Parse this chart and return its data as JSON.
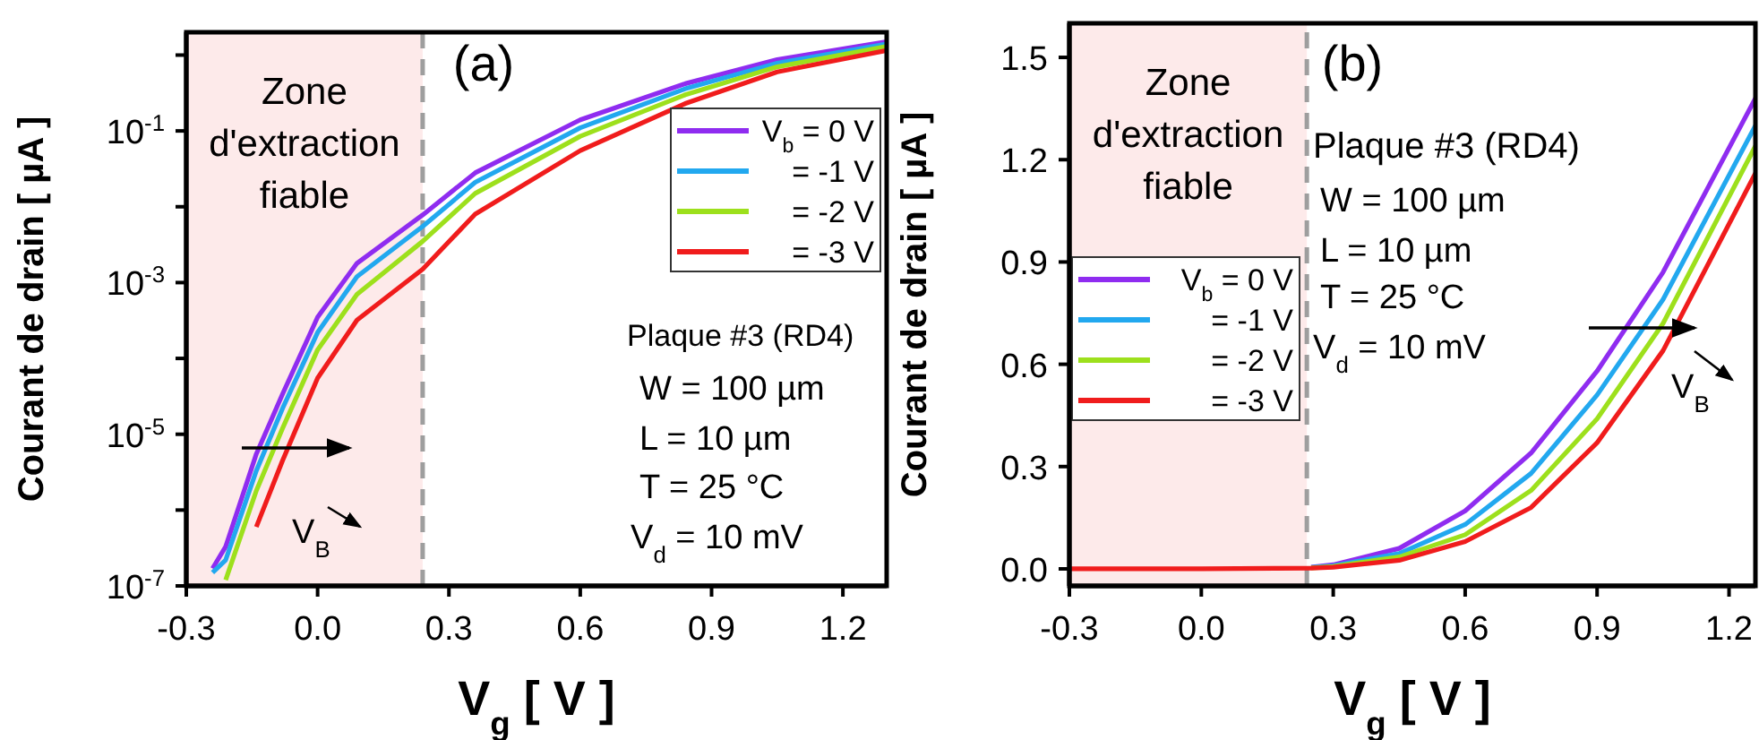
{
  "chart_data": [
    {
      "type": "line",
      "xlabel": "V$_{g}$ [ V ]",
      "ylabel": "Courant de drain [ µA ]",
      "log": "y",
      "x": [
        -0.24,
        -0.21,
        -0.14,
        -0.08,
        0.0,
        0.09,
        0.24,
        0.36,
        0.6,
        0.84,
        1.05,
        1.3
      ],
      "series": [
        {
          "name": "V$_{b}$ = 0 V",
          "color": "#8f2cf0",
          "values": [
            1.7e-07,
            3.3e-07,
            5.5e-06,
            3.4e-05,
            0.00035,
            0.0018,
            0.0078,
            0.028,
            0.14,
            0.42,
            0.87,
            1.5
          ]
        },
        {
          "name": "= -1 V",
          "color": "#22a8ef",
          "values": [
            1.5e-07,
            2.2e-07,
            3.3e-06,
            2.2e-05,
            0.00022,
            0.0012,
            0.0055,
            0.021,
            0.11,
            0.36,
            0.78,
            1.4
          ]
        },
        {
          "name": "= -2 V",
          "color": "#9de01c",
          "values": [
            null,
            1.2e-07,
            1.8e-06,
            1.2e-05,
            0.00013,
            0.0007,
            0.0035,
            0.015,
            0.085,
            0.3,
            0.7,
            1.3
          ]
        },
        {
          "name": "= -3 V",
          "color": "#f01c1c",
          "values": [
            null,
            null,
            6e-07,
            4.5e-06,
            5.5e-05,
            0.00032,
            0.0015,
            0.008,
            0.055,
            0.23,
            0.6,
            1.15
          ]
        }
      ],
      "xlim": [
        -0.3,
        1.3
      ],
      "xticks": [
        -0.3,
        {
          "value": 0,
          "label": "0.0"
        },
        0.3,
        0.6,
        0.9,
        1.2
      ],
      "ylim": [
        1e-07,
        2
      ],
      "yticks": [
        {
          "value": 1e-07,
          "label": "10$^{-7}$"
        },
        {
          "value": 1e-06,
          "label": null
        },
        {
          "value": 1e-05,
          "label": "10$^{-5}$"
        },
        {
          "value": 0.0001,
          "label": null
        },
        {
          "value": 0.001,
          "label": "10$^{-3}$"
        },
        {
          "value": 0.01,
          "label": null
        },
        {
          "value": 0.1,
          "label": "10$^{-1}$"
        },
        {
          "value": 1,
          "label": null
        }
      ],
      "bands": [
        {
          "axis": "x",
          "from": -0.3,
          "to": 0.24,
          "label": "Zone d'extraction fiable",
          "color": "#fdeaea"
        }
      ],
      "ref_lines": [
        {
          "axis": "x",
          "value": 0.24,
          "color": "#9e9e9e",
          "line_style": "dashed"
        }
      ],
      "legend": "top right",
      "annotations": [
        "(a)",
        "Plaque #3 (RD4)",
        "W = 100 µm",
        "L = 10 µm",
        "T = 25 °C",
        "V$_{d}$ = 10 mV",
        "V$_{B}$"
      ]
    },
    {
      "type": "line",
      "xlabel": "V$_{g}$ [ V ]",
      "ylabel": "Courant de drain [ µA ]",
      "x": [
        -0.3,
        0.0,
        0.25,
        0.3,
        0.45,
        0.6,
        0.75,
        0.9,
        1.05,
        1.26
      ],
      "series": [
        {
          "name": "V$_{b}$ = 0 V",
          "color": "#8f2cf0",
          "values": [
            null,
            null,
            0.005,
            0.012,
            0.06,
            0.17,
            0.34,
            0.58,
            0.87,
            1.38
          ]
        },
        {
          "name": "= -1 V",
          "color": "#22a8ef",
          "values": [
            null,
            null,
            0.004,
            0.009,
            0.045,
            0.13,
            0.28,
            0.51,
            0.79,
            1.3
          ]
        },
        {
          "name": "= -2 V",
          "color": "#9de01c",
          "values": [
            null,
            null,
            0.003,
            0.007,
            0.035,
            0.1,
            0.23,
            0.44,
            0.72,
            1.24
          ]
        },
        {
          "name": "= -3 V",
          "color": "#f01c1c",
          "values": [
            0,
            0,
            0.002,
            0.005,
            0.025,
            0.08,
            0.18,
            0.37,
            0.64,
            1.16
          ]
        }
      ],
      "xlim": [
        -0.3,
        1.26
      ],
      "xticks": [
        -0.3,
        {
          "value": 0,
          "label": "0.0"
        },
        0.3,
        0.6,
        0.9,
        1.2
      ],
      "ylim": [
        -0.05,
        1.6
      ],
      "yticks": [
        {
          "value": 0,
          "label": "0.0"
        },
        0.3,
        0.6,
        0.9,
        1.2,
        1.5
      ],
      "bands": [
        {
          "axis": "x",
          "from": -0.3,
          "to": 0.24,
          "label": "Zone d'extraction fiable",
          "color": "#fdeaea"
        }
      ],
      "ref_lines": [
        {
          "axis": "x",
          "value": 0.24,
          "color": "#9e9e9e",
          "line_style": "dashed"
        }
      ],
      "legend": "left",
      "annotations": [
        "(b)",
        "Plaque #3 (RD4)",
        "W = 100 µm",
        "L = 10 µm",
        "T = 25 °C",
        "V$_{d}$ = 10 mV",
        "V$_{B}$"
      ]
    }
  ]
}
